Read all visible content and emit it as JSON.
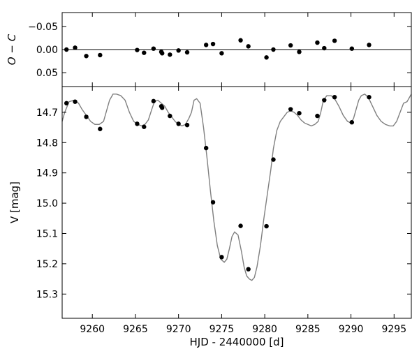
{
  "chart_data": {
    "type": "scatter",
    "top_panel": {
      "ylabel": "O − C",
      "ylim": [
        0.08,
        -0.08
      ],
      "yticks": [
        -0.05,
        0.0,
        0.05
      ],
      "ytick_labels": [
        "−0.05",
        "0.00",
        "0.05"
      ],
      "zero_line": true,
      "residuals": {
        "x": [
          9257.0,
          9258.0,
          9259.3,
          9260.9,
          9265.2,
          9266.0,
          9267.1,
          9268.0,
          9268.1,
          9269.0,
          9270.0,
          9271.0,
          9273.2,
          9274.0,
          9275.0,
          9277.2,
          9278.1,
          9280.2,
          9281.0,
          9283.0,
          9284.0,
          9286.1,
          9286.9,
          9288.1,
          9290.1,
          9292.1
        ],
        "y": [
          0.0,
          -0.004,
          0.014,
          0.012,
          0.001,
          0.007,
          -0.002,
          0.005,
          0.008,
          0.011,
          0.002,
          0.006,
          -0.01,
          -0.012,
          0.008,
          -0.02,
          -0.007,
          0.017,
          0.0,
          -0.009,
          0.005,
          -0.015,
          -0.003,
          -0.019,
          -0.002,
          -0.01
        ]
      }
    },
    "bottom_panel": {
      "xlabel": "HJD - 2440000 [d]",
      "ylabel": "V [mag]",
      "xlim": [
        9256.5,
        9297.0
      ],
      "ylim": [
        15.38,
        14.615
      ],
      "xticks": [
        9260,
        9265,
        9270,
        9275,
        9280,
        9285,
        9290,
        9295
      ],
      "yticks": [
        14.7,
        14.8,
        14.9,
        15.0,
        15.1,
        15.2,
        15.3
      ],
      "ytick_labels": [
        "14.7",
        "14.8",
        "14.9",
        "15.0",
        "15.1",
        "15.2",
        "15.3"
      ],
      "observations": {
        "x": [
          9257.0,
          9258.0,
          9259.3,
          9260.9,
          9265.2,
          9266.0,
          9267.1,
          9268.0,
          9268.1,
          9269.0,
          9270.0,
          9271.0,
          9273.2,
          9274.0,
          9275.0,
          9277.2,
          9278.1,
          9280.2,
          9281.0,
          9283.0,
          9284.0,
          9286.1,
          9286.9,
          9288.1,
          9290.1,
          9292.1
        ],
        "y": [
          14.67,
          14.665,
          14.715,
          14.755,
          14.738,
          14.748,
          14.663,
          14.68,
          14.685,
          14.712,
          14.738,
          14.742,
          14.818,
          14.997,
          15.178,
          15.075,
          15.218,
          15.076,
          14.856,
          14.69,
          14.703,
          14.712,
          14.66,
          14.65,
          14.733,
          14.65
        ]
      },
      "model": {
        "x": [
          9256.5,
          9256.8,
          9257.3,
          9257.9,
          9258.4,
          9258.8,
          9259.3,
          9259.8,
          9260.3,
          9260.8,
          9261.3,
          9261.8,
          9262.0,
          9262.4,
          9262.8,
          9263.3,
          9263.8,
          9264.3,
          9264.8,
          9265.3,
          9265.7,
          9266.1,
          9266.5,
          9266.9,
          9267.2,
          9267.6,
          9268.0,
          9268.4,
          9268.8,
          9269.2,
          9269.6,
          9270.0,
          9270.4,
          9270.8,
          9271.2,
          9271.5,
          9271.8,
          9272.1,
          9272.5,
          9272.9,
          9273.3,
          9273.7,
          9274.1,
          9274.5,
          9274.9,
          9275.3,
          9275.6,
          9275.9,
          9276.2,
          9276.5,
          9276.9,
          9277.3,
          9277.6,
          9277.9,
          9278.2,
          9278.5,
          9278.8,
          9279.1,
          9279.5,
          9279.9,
          9280.3,
          9280.7,
          9281.0,
          9281.4,
          9281.8,
          9282.2,
          9282.6,
          9283.0,
          9283.4,
          9283.8,
          9284.2,
          9284.6,
          9285.0,
          9285.4,
          9285.8,
          9286.2,
          9286.5,
          9286.8,
          9287.2,
          9287.7,
          9288.1,
          9288.6,
          9289.1,
          9289.6,
          9290.0,
          9290.3,
          9290.6,
          9290.9,
          9291.2,
          9291.6,
          9292.0,
          9292.5,
          9293.0,
          9293.5,
          9294.0,
          9294.5,
          9294.9,
          9295.3,
          9295.7,
          9296.1,
          9296.5,
          9297.0
        ],
        "y": [
          14.73,
          14.7,
          14.665,
          14.66,
          14.67,
          14.69,
          14.71,
          14.73,
          14.74,
          14.74,
          14.73,
          14.68,
          14.66,
          14.64,
          14.64,
          14.645,
          14.66,
          14.7,
          14.73,
          14.74,
          14.745,
          14.74,
          14.725,
          14.69,
          14.665,
          14.66,
          14.67,
          14.68,
          14.7,
          14.715,
          14.73,
          14.74,
          14.745,
          14.74,
          14.72,
          14.7,
          14.66,
          14.655,
          14.67,
          14.75,
          14.85,
          14.96,
          15.06,
          15.14,
          15.185,
          15.195,
          15.185,
          15.15,
          15.11,
          15.095,
          15.105,
          15.16,
          15.21,
          15.24,
          15.25,
          15.255,
          15.245,
          15.21,
          15.14,
          15.05,
          14.97,
          14.89,
          14.82,
          14.76,
          14.73,
          14.715,
          14.7,
          14.695,
          14.7,
          14.71,
          14.725,
          14.735,
          14.74,
          14.745,
          14.74,
          14.73,
          14.7,
          14.66,
          14.645,
          14.645,
          14.655,
          14.68,
          14.71,
          14.73,
          14.735,
          14.72,
          14.69,
          14.66,
          14.645,
          14.64,
          14.65,
          14.68,
          14.71,
          14.73,
          14.74,
          14.745,
          14.745,
          14.73,
          14.7,
          14.67,
          14.665,
          14.64
        ]
      }
    }
  },
  "colors": {
    "points": "#000000",
    "model_line": "#808080",
    "axes": "#000000",
    "background": "#ffffff"
  }
}
